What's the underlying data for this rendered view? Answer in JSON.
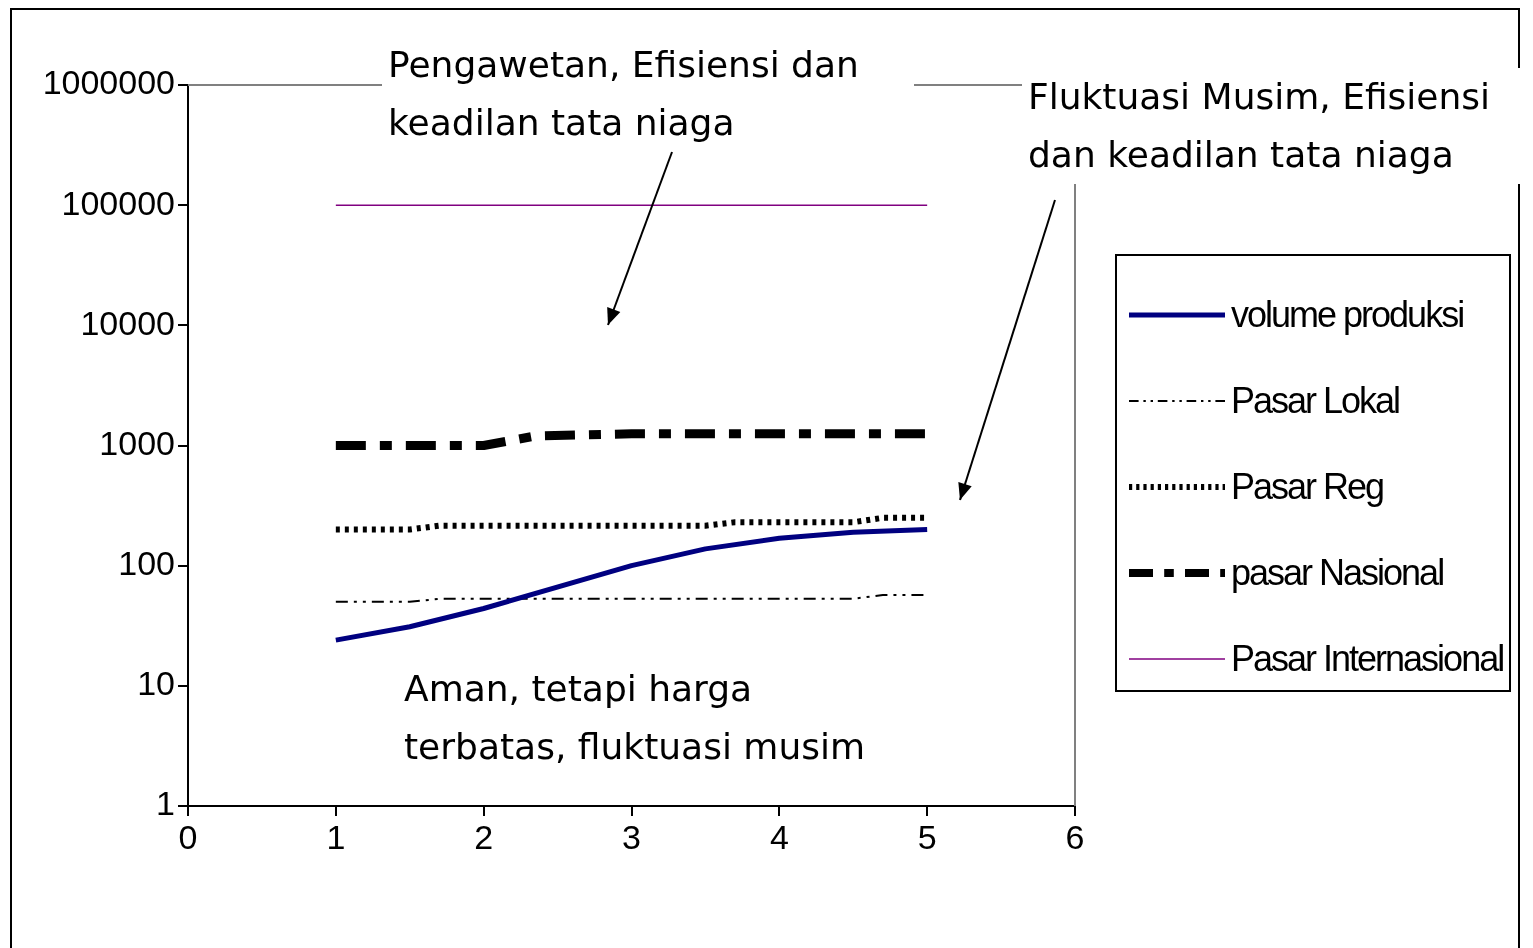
{
  "chart_data": {
    "type": "line",
    "series": [
      {
        "name": "volume produksi",
        "color": "#000080",
        "line_style": "solid",
        "x": [
          1,
          1.5,
          2,
          3,
          3.5,
          4,
          4.5,
          5
        ],
        "values": [
          24,
          31,
          44,
          100,
          138,
          169,
          190,
          200
        ]
      },
      {
        "name": "Pasar Lokal",
        "color": "#000000",
        "line_style": "dashed",
        "x": [
          1,
          1.5,
          1.7,
          4.5,
          4.7,
          5
        ],
        "values": [
          50,
          50,
          53,
          53,
          57,
          57
        ]
      },
      {
        "name": "Pasar Reg",
        "color": "#000000",
        "line_style": "dotted",
        "x": [
          1,
          1.5,
          1.7,
          3.5,
          3.7,
          4.5,
          4.7,
          5
        ],
        "values": [
          200,
          200,
          215,
          215,
          230,
          230,
          250,
          250
        ]
      },
      {
        "name": "pasar Nasional",
        "color": "#000000",
        "line_style": "dashed",
        "x": [
          1,
          1.5,
          2,
          2.35,
          3,
          4,
          5
        ],
        "values": [
          1000,
          1000,
          1000,
          1200,
          1250,
          1250,
          1250
        ]
      },
      {
        "name": "Pasar Internasional",
        "color": "#800080",
        "line_style": "solid",
        "x": [
          1,
          5
        ],
        "values": [
          100000,
          100000
        ]
      }
    ],
    "xlim": [
      0,
      6
    ],
    "xticks": [
      0,
      1,
      2,
      3,
      4,
      5,
      6
    ],
    "ylim": [
      1,
      1000000
    ],
    "yticks": [
      1,
      10,
      100,
      1000,
      10000,
      100000,
      1000000
    ],
    "log": "y",
    "grid": false,
    "legend": "right",
    "marker": "none",
    "annotations": [
      "Pengawetan, Efisiensi dan keadilan tata niaga",
      "Fluktuasi Musim, Efisiensi dan keadilan tata niaga",
      "Aman, tetapi harga terbatas, fluktuasi musim"
    ]
  }
}
